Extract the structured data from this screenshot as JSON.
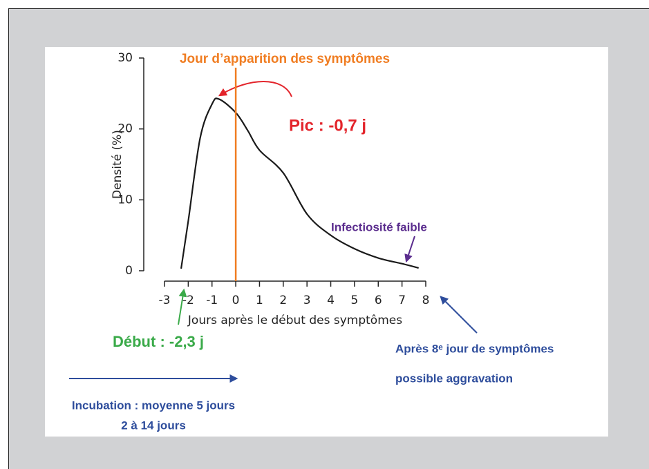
{
  "chart_data": {
    "type": "line",
    "x": [
      -2.3,
      -2,
      -1.5,
      -1,
      -0.7,
      0,
      0.5,
      1,
      2,
      3,
      4,
      5,
      6,
      7,
      7.7
    ],
    "values": [
      0.3,
      7,
      18.7,
      23.5,
      24.2,
      22.3,
      19.8,
      17,
      13.8,
      8,
      5,
      3.1,
      1.8,
      1,
      0.4
    ],
    "color": "#1a1a1a",
    "ylabel": "Densité (%)",
    "xlabel": "Jours après le début des symptômes",
    "xlim": [
      -3,
      8
    ],
    "xticks": [
      -3,
      -2,
      -1,
      0,
      1,
      2,
      3,
      4,
      5,
      6,
      7,
      8
    ],
    "ylim": [
      0,
      30
    ],
    "yticks": [
      0,
      10,
      20,
      30
    ],
    "marker_x": 0,
    "marker_color": "#f07d22",
    "annotations": [
      {
        "text": "Jour d’apparition des symptômes",
        "color": "#f07d22"
      },
      {
        "text": "Pic : -0,7 j",
        "color": "#e3242b"
      },
      {
        "text": "Infectiosité faible",
        "color": "#5b2d8e"
      },
      {
        "text": "Début : -2,3 j",
        "color": "#3aaa49"
      },
      {
        "text": "Après 8ᵉ jour de symptômes",
        "color": "#2e4d9c"
      },
      {
        "text": "possible aggravation",
        "color": "#2e4d9c"
      },
      {
        "text": "Incubation : moyenne 5 jours",
        "color": "#2e4d9c"
      },
      {
        "text": "2 à 14 jours",
        "color": "#2e4d9c"
      }
    ]
  }
}
